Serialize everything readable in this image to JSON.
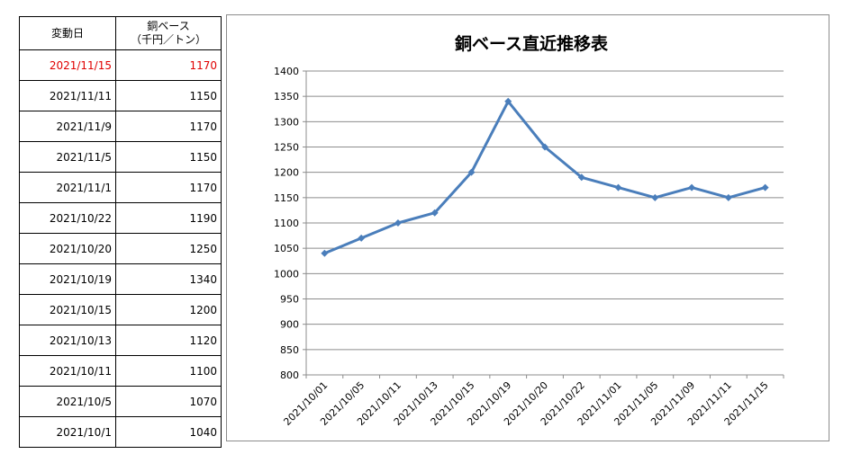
{
  "table": {
    "header": {
      "date": "変動日",
      "price_line1": "銅ベース",
      "price_line2": "（千円／トン）"
    },
    "rows": [
      {
        "date": "2021/11/15",
        "value": "1170",
        "highlight": true
      },
      {
        "date": "2021/11/11",
        "value": "1150",
        "highlight": false
      },
      {
        "date": "2021/11/9",
        "value": "1170",
        "highlight": false
      },
      {
        "date": "2021/11/5",
        "value": "1150",
        "highlight": false
      },
      {
        "date": "2021/11/1",
        "value": "1170",
        "highlight": false
      },
      {
        "date": "2021/10/22",
        "value": "1190",
        "highlight": false
      },
      {
        "date": "2021/10/20",
        "value": "1250",
        "highlight": false
      },
      {
        "date": "2021/10/19",
        "value": "1340",
        "highlight": false
      },
      {
        "date": "2021/10/15",
        "value": "1200",
        "highlight": false
      },
      {
        "date": "2021/10/13",
        "value": "1120",
        "highlight": false
      },
      {
        "date": "2021/10/11",
        "value": "1100",
        "highlight": false
      },
      {
        "date": "2021/10/5",
        "value": "1070",
        "highlight": false
      },
      {
        "date": "2021/10/1",
        "value": "1040",
        "highlight": false
      }
    ],
    "highlight_color": "#e00000"
  },
  "chart_data": {
    "type": "line",
    "title": "銅ベース直近推移表",
    "xlabel": "",
    "ylabel": "",
    "categories": [
      "2021/10/01",
      "2021/10/05",
      "2021/10/11",
      "2021/10/13",
      "2021/10/15",
      "2021/10/19",
      "2021/10/20",
      "2021/10/22",
      "2021/11/01",
      "2021/11/05",
      "2021/11/09",
      "2021/11/11",
      "2021/11/15"
    ],
    "series": [
      {
        "name": "",
        "values": [
          1040,
          1070,
          1100,
          1120,
          1200,
          1340,
          1250,
          1190,
          1170,
          1150,
          1170,
          1150,
          1170
        ],
        "color": "#4a7ebb"
      }
    ],
    "ylim": [
      800,
      1400
    ],
    "yticks": [
      800,
      850,
      900,
      950,
      1000,
      1050,
      1100,
      1150,
      1200,
      1250,
      1300,
      1350,
      1400
    ],
    "grid": true,
    "legend": "none",
    "marker": "diamond"
  }
}
